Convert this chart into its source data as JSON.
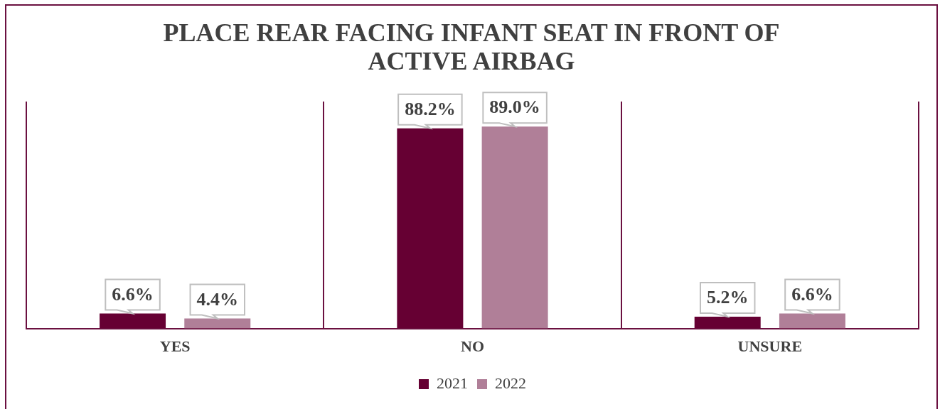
{
  "chart_data": {
    "type": "bar",
    "title": "PLACE REAR FACING INFANT SEAT IN FRONT OF ACTIVE AIRBAG",
    "categories": [
      "YES",
      "NO",
      "UNSURE"
    ],
    "series": [
      {
        "name": "2021",
        "color": "#660033",
        "values": [
          6.6,
          88.2,
          5.2
        ],
        "value_labels": [
          "6.6%",
          "88.2%",
          "5.2%"
        ]
      },
      {
        "name": "2022",
        "color": "#b07f98",
        "values": [
          4.4,
          89.0,
          6.6
        ],
        "value_labels": [
          "4.4%",
          "89.0%",
          "6.6%"
        ]
      }
    ],
    "ylim": [
      0,
      100
    ],
    "tick_labels": "x",
    "grid": "x",
    "legend": "bottom"
  }
}
